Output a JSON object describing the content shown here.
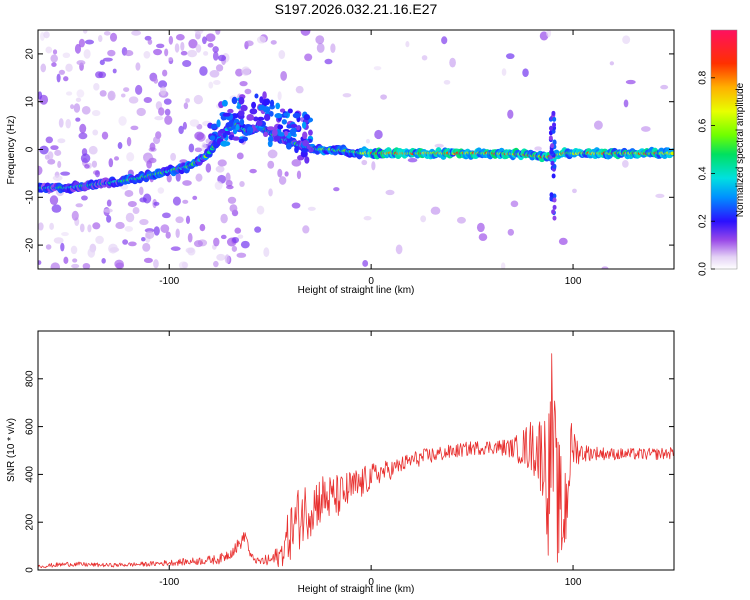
{
  "title": "S197.2026.032.21.16.E27",
  "chart_data": [
    {
      "type": "heatmap",
      "name": "spectrogram",
      "xlabel": "Height of straight line (km)",
      "ylabel": "Frequency (Hz)",
      "xlim": [
        -165,
        150
      ],
      "ylim": [
        -25,
        25
      ],
      "xticks": [
        -100,
        0,
        100
      ],
      "yticks": [
        -20,
        -10,
        0,
        10,
        20
      ],
      "colorbar": {
        "label": "Normalized spectral amplitude",
        "range": [
          0,
          1
        ],
        "ticks": [
          0.0,
          0.2,
          0.4,
          0.6,
          0.8
        ]
      },
      "ridge": {
        "x": [
          -165,
          -150,
          -130,
          -115,
          -100,
          -90,
          -82,
          -77,
          -72,
          -68,
          -62,
          -55,
          -48,
          -42,
          -36,
          -30,
          -25,
          -20,
          -15,
          -10,
          -5,
          0,
          20,
          40,
          60,
          75,
          85,
          90,
          95,
          110,
          130,
          150
        ],
        "freq": [
          -8,
          -8,
          -7,
          -6,
          -4.5,
          -3.5,
          -1.5,
          1,
          4,
          5.5,
          4,
          5,
          3,
          2,
          1,
          0.3,
          0,
          0,
          -0.2,
          -0.5,
          -0.7,
          -0.8,
          -0.8,
          -0.8,
          -0.8,
          -1,
          -1.5,
          -1.5,
          -0.8,
          -0.8,
          -0.8,
          -0.8
        ]
      }
    },
    {
      "type": "line",
      "name": "snr",
      "xlabel": "Height of straight line (km)",
      "ylabel": "SNR (10 * v/v)",
      "xlim": [
        -165,
        150
      ],
      "ylim": [
        0,
        1000
      ],
      "xticks": [
        -100,
        0,
        100
      ],
      "yticks": [
        0,
        200,
        400,
        600,
        800
      ],
      "color": "#e8302f",
      "series": [
        {
          "name": "SNR",
          "x": [
            -165,
            -150,
            -130,
            -110,
            -90,
            -75,
            -70,
            -65,
            -62,
            -60,
            -56,
            -50,
            -45,
            -40,
            -35,
            -30,
            -25,
            -20,
            -15,
            -10,
            -5,
            0,
            5,
            10,
            15,
            20,
            25,
            30,
            40,
            50,
            60,
            70,
            75,
            80,
            85,
            87,
            88,
            89,
            90,
            92,
            95,
            97,
            98,
            100,
            102,
            105,
            110,
            120,
            130,
            140,
            150
          ],
          "values": [
            15,
            25,
            20,
            25,
            35,
            45,
            70,
            110,
            150,
            60,
            35,
            40,
            60,
            160,
            230,
            260,
            300,
            300,
            310,
            340,
            360,
            390,
            410,
            420,
            440,
            460,
            470,
            480,
            495,
            510,
            515,
            510,
            510,
            520,
            480,
            420,
            350,
            600,
            520,
            300,
            200,
            320,
            450,
            520,
            500,
            490,
            490,
            485,
            485,
            485,
            490
          ],
          "amplitude": [
            8,
            10,
            8,
            10,
            15,
            20,
            25,
            30,
            20,
            15,
            15,
            30,
            50,
            120,
            140,
            120,
            110,
            100,
            90,
            80,
            70,
            55,
            45,
            40,
            35,
            35,
            35,
            35,
            30,
            30,
            30,
            40,
            80,
            120,
            180,
            280,
            330,
            380,
            340,
            280,
            260,
            220,
            180,
            100,
            60,
            40,
            30,
            25,
            25,
            25,
            25
          ]
        }
      ]
    }
  ]
}
